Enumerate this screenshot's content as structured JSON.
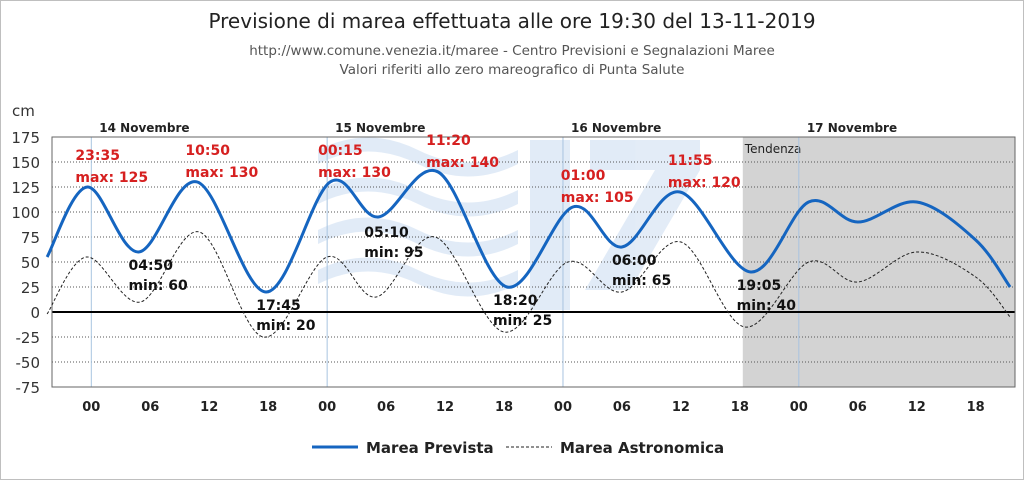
{
  "header": {
    "title": "Previsione di marea effettuata alle ore 19:30 del 13-11-2019",
    "source": "http://www.comune.venezia.it/maree - Centro Previsioni e Segnalazioni Maree",
    "reference": "Valori riferiti allo zero mareografico di Punta Salute"
  },
  "chart_data": {
    "type": "line",
    "ylabel": "cm",
    "ylim": [
      -75,
      175
    ],
    "yticks": [
      175,
      150,
      125,
      100,
      75,
      50,
      25,
      0,
      -25,
      -50,
      -75
    ],
    "xlim": [
      -4,
      94
    ],
    "xticks": [
      {
        "h": 0,
        "label": "00"
      },
      {
        "h": 6,
        "label": "06"
      },
      {
        "h": 12,
        "label": "12"
      },
      {
        "h": 18,
        "label": "18"
      },
      {
        "h": 24,
        "label": "00"
      },
      {
        "h": 30,
        "label": "06"
      },
      {
        "h": 36,
        "label": "12"
      },
      {
        "h": 42,
        "label": "18"
      },
      {
        "h": 48,
        "label": "00"
      },
      {
        "h": 54,
        "label": "06"
      },
      {
        "h": 60,
        "label": "12"
      },
      {
        "h": 66,
        "label": "18"
      },
      {
        "h": 72,
        "label": "00"
      },
      {
        "h": 78,
        "label": "06"
      },
      {
        "h": 84,
        "label": "12"
      },
      {
        "h": 90,
        "label": "18"
      }
    ],
    "days": [
      {
        "h": 0,
        "label": "14 Novembre"
      },
      {
        "h": 24,
        "label": "15 Novembre"
      },
      {
        "h": 48,
        "label": "16 Novembre"
      },
      {
        "h": 72,
        "label": "17 Novembre"
      }
    ],
    "trend": {
      "from": 66.3,
      "label": "Tendenza"
    },
    "grid": true,
    "legend_position": "bottom",
    "series": [
      {
        "name": "Marea Prevista",
        "style": "solid",
        "color": "#1565c0",
        "points": [
          [
            -4.5,
            55
          ],
          [
            -0.4,
            125
          ],
          [
            4.8,
            60
          ],
          [
            10.8,
            130
          ],
          [
            17.8,
            20
          ],
          [
            24.3,
            130
          ],
          [
            29.2,
            95
          ],
          [
            35.3,
            140
          ],
          [
            42.3,
            25
          ],
          [
            49,
            105
          ],
          [
            54,
            65
          ],
          [
            59.9,
            120
          ],
          [
            67.1,
            40
          ],
          [
            73,
            110
          ],
          [
            78,
            90
          ],
          [
            84,
            110
          ],
          [
            90,
            72
          ],
          [
            93.5,
            25
          ]
        ]
      },
      {
        "name": "Marea Astronomica",
        "style": "dashed",
        "color": "#222222",
        "points": [
          [
            -4.5,
            -2
          ],
          [
            -0.5,
            55
          ],
          [
            5,
            10
          ],
          [
            11,
            80
          ],
          [
            17.5,
            -25
          ],
          [
            24,
            55
          ],
          [
            29,
            15
          ],
          [
            35,
            75
          ],
          [
            42,
            -20
          ],
          [
            48.5,
            50
          ],
          [
            54,
            20
          ],
          [
            60,
            70
          ],
          [
            66.5,
            -15
          ],
          [
            73,
            50
          ],
          [
            78,
            30
          ],
          [
            84,
            60
          ],
          [
            90,
            35
          ],
          [
            93.5,
            -5
          ]
        ]
      }
    ],
    "annotations": [
      {
        "type": "max",
        "time": "23:35",
        "text": "max: 125",
        "h": -0.4
      },
      {
        "type": "min",
        "time": "04:50",
        "text": "min: 60",
        "h": 4.8
      },
      {
        "type": "max",
        "time": "10:50",
        "text": "max: 130",
        "h": 10.8
      },
      {
        "type": "min",
        "time": "17:45",
        "text": "min: 20",
        "h": 17.8
      },
      {
        "type": "max",
        "time": "00:15",
        "text": "max: 130",
        "h": 24.3
      },
      {
        "type": "min",
        "time": "05:10",
        "text": "min: 95",
        "h": 29.2
      },
      {
        "type": "max",
        "time": "11:20",
        "text": "max: 140",
        "h": 35.3
      },
      {
        "type": "min",
        "time": "18:20",
        "text": "min: 25",
        "h": 42.3
      },
      {
        "type": "max",
        "time": "01:00",
        "text": "max: 105",
        "h": 49
      },
      {
        "type": "min",
        "time": "06:00",
        "text": "min: 65",
        "h": 54
      },
      {
        "type": "max",
        "time": "11:55",
        "text": "max: 120",
        "h": 59.9
      },
      {
        "type": "min",
        "time": "19:05",
        "text": "min: 40",
        "h": 67.1
      }
    ]
  }
}
